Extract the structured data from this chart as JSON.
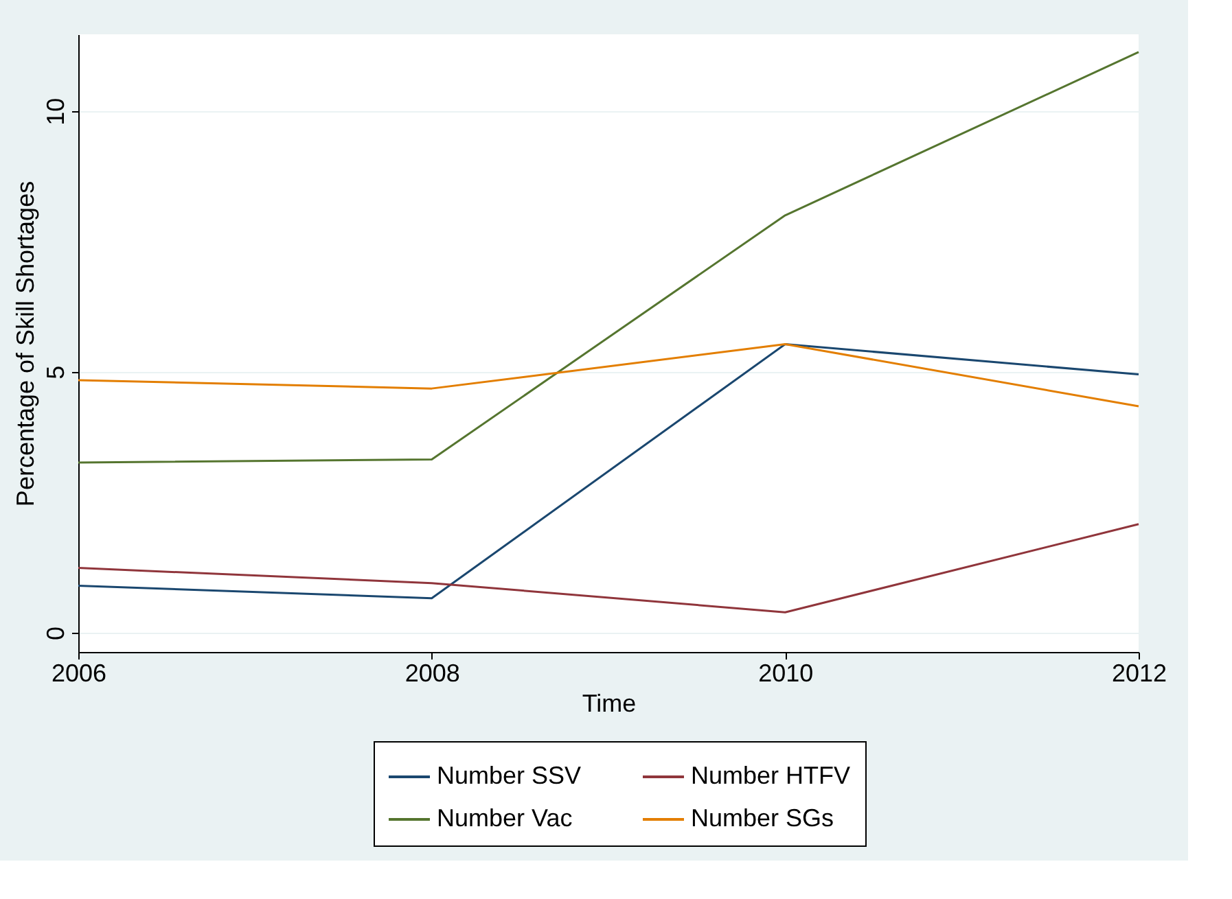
{
  "chart_data": {
    "type": "line",
    "xlabel": "Time",
    "ylabel": "Percentage of Skill Shortages",
    "x": [
      2006,
      2008,
      2010,
      2012
    ],
    "series": [
      {
        "name": "Number SSV",
        "color": "#1a476f",
        "values": [
          0.9,
          0.66,
          5.53,
          4.95
        ]
      },
      {
        "name": "Number HTFV",
        "color": "#90353b",
        "values": [
          1.24,
          0.95,
          0.39,
          2.08
        ]
      },
      {
        "name": "Number Vac",
        "color": "#55752f",
        "values": [
          3.26,
          3.32,
          8.0,
          11.13
        ]
      },
      {
        "name": "Number SGs",
        "color": "#e37e00",
        "values": [
          4.84,
          4.68,
          5.53,
          4.34
        ]
      }
    ],
    "xlim": [
      2006,
      2012
    ],
    "xticks": [
      2006,
      2008,
      2010,
      2012
    ],
    "ylim": [
      -0.37,
      11.47
    ],
    "yticks": [
      0,
      5,
      10
    ],
    "grid": "y",
    "legend": "bottom",
    "marker": "none",
    "line_style": "solid"
  }
}
